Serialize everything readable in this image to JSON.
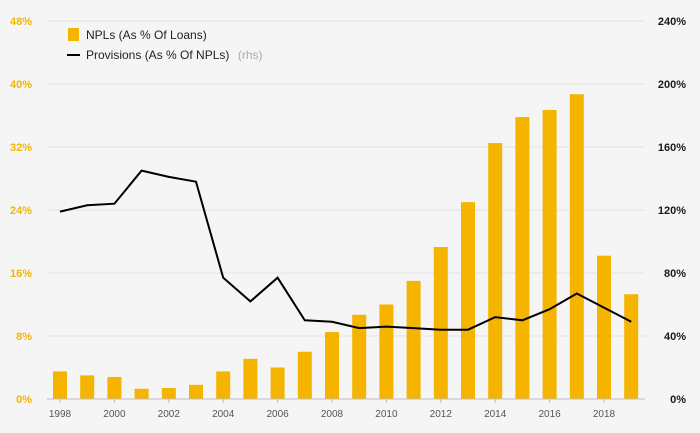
{
  "chart_data": {
    "type": "bar",
    "x": [
      1998,
      1999,
      2000,
      2001,
      2002,
      2003,
      2004,
      2005,
      2006,
      2007,
      2008,
      2009,
      2010,
      2011,
      2012,
      2013,
      2014,
      2015,
      2016,
      2017,
      2018,
      2019
    ],
    "x_tick_labels": [
      "1998",
      "2000",
      "2002",
      "2004",
      "2006",
      "2008",
      "2010",
      "2012",
      "2014",
      "2016",
      "2018"
    ],
    "series": [
      {
        "name": "NPLs (As % Of Loans)",
        "type": "bar",
        "axis": "left",
        "color": "#f5b400",
        "values": [
          3.5,
          3.0,
          2.8,
          1.3,
          1.4,
          1.8,
          3.5,
          5.1,
          4.0,
          6.0,
          8.5,
          10.7,
          12.0,
          15.0,
          19.3,
          25.0,
          32.5,
          35.8,
          36.7,
          38.7,
          18.2,
          13.3
        ]
      },
      {
        "name": "Provisions (As % Of NPLs)",
        "name_note": "(rhs)",
        "type": "line",
        "axis": "right",
        "color": "#000000",
        "values": [
          119,
          123,
          124,
          145,
          141,
          138,
          77,
          62,
          77,
          50,
          49,
          45,
          46,
          45,
          44,
          44,
          52,
          50,
          57,
          67,
          58,
          49
        ]
      }
    ],
    "y_left": {
      "ticks": [
        "0%",
        "8%",
        "16%",
        "24%",
        "32%",
        "40%",
        "48%"
      ],
      "range": [
        0,
        48
      ]
    },
    "y_right": {
      "ticks": [
        "0%",
        "40%",
        "80%",
        "120%",
        "160%",
        "200%",
        "240%"
      ],
      "range": [
        0,
        240
      ]
    },
    "grid": true,
    "legend": "top-left"
  }
}
